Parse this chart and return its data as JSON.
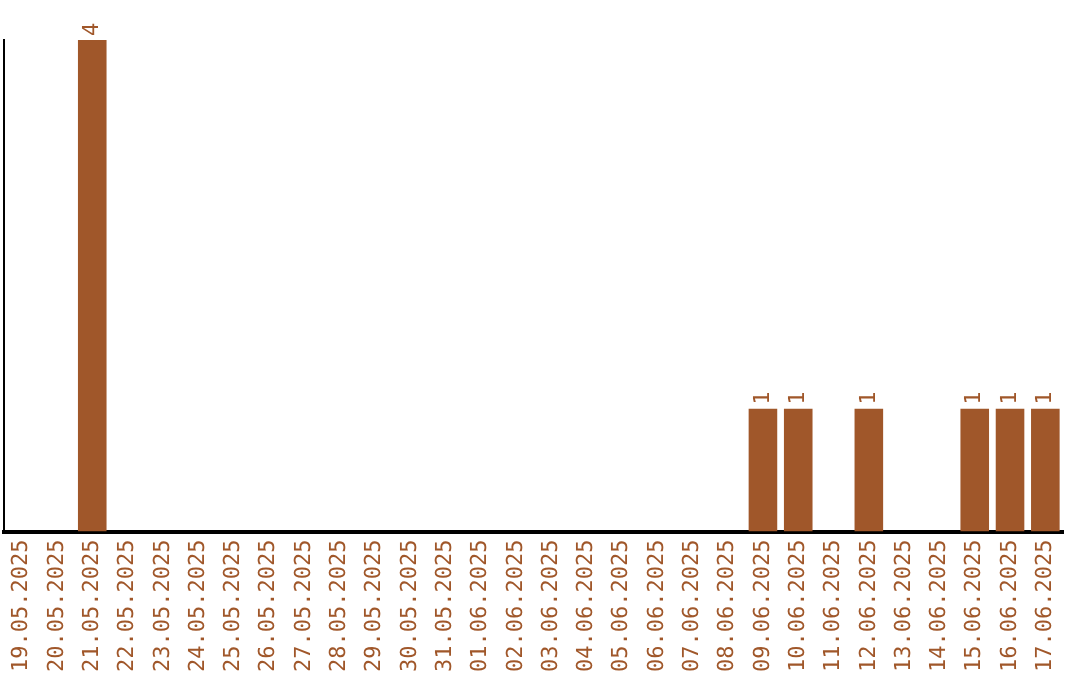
{
  "chart_data": {
    "type": "bar",
    "categories": [
      "19.05.2025",
      "20.05.2025",
      "21.05.2025",
      "22.05.2025",
      "23.05.2025",
      "24.05.2025",
      "25.05.2025",
      "26.05.2025",
      "27.05.2025",
      "28.05.2025",
      "29.05.2025",
      "30.05.2025",
      "31.05.2025",
      "01.06.2025",
      "02.06.2025",
      "03.06.2025",
      "04.06.2025",
      "05.06.2025",
      "06.06.2025",
      "07.06.2025",
      "08.06.2025",
      "09.06.2025",
      "10.06.2025",
      "11.06.2025",
      "12.06.2025",
      "13.06.2025",
      "14.06.2025",
      "15.06.2025",
      "16.06.2025",
      "17.06.2025"
    ],
    "values": [
      0,
      0,
      4,
      0,
      0,
      0,
      0,
      0,
      0,
      0,
      0,
      0,
      0,
      0,
      0,
      0,
      0,
      0,
      0,
      0,
      0,
      1,
      1,
      0,
      1,
      0,
      0,
      1,
      1,
      1
    ],
    "value_labels": [
      null,
      null,
      "4",
      null,
      null,
      null,
      null,
      null,
      null,
      null,
      null,
      null,
      null,
      null,
      null,
      null,
      null,
      null,
      null,
      null,
      null,
      "1",
      "1",
      null,
      "1",
      null,
      null,
      "1",
      "1",
      "1"
    ],
    "color": "#a0572a",
    "tick_labels": "x",
    "grid": false,
    "legend": false
  }
}
